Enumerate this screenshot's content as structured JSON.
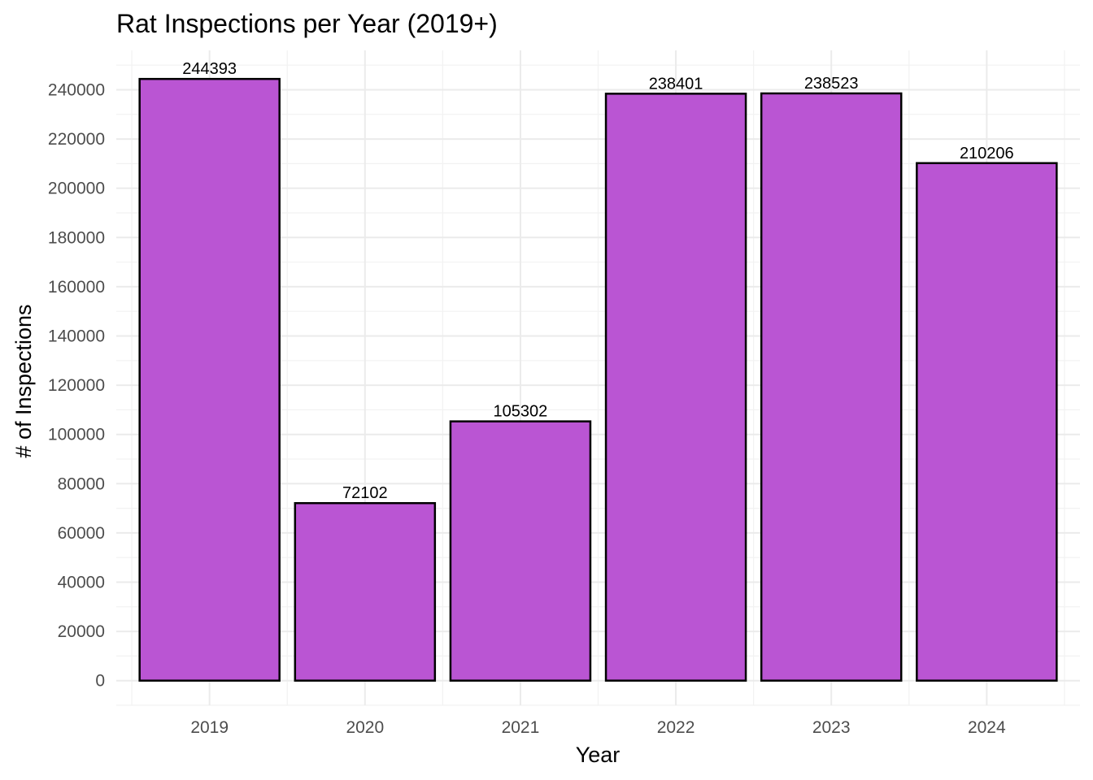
{
  "chart_data": {
    "type": "bar",
    "title": "Rat Inspections per Year (2019+)",
    "xlabel": "Year",
    "ylabel": "# of Inspections",
    "categories": [
      "2019",
      "2020",
      "2021",
      "2022",
      "2023",
      "2024"
    ],
    "values": [
      244393,
      72102,
      105302,
      238401,
      238523,
      210206
    ],
    "data_labels": [
      "244393",
      "72102",
      "105302",
      "238401",
      "238523",
      "210206"
    ],
    "yticks": [
      0,
      20000,
      40000,
      60000,
      80000,
      100000,
      120000,
      140000,
      160000,
      180000,
      200000,
      220000,
      240000
    ],
    "ytick_labels": [
      "0",
      "20000",
      "40000",
      "60000",
      "80000",
      "100000",
      "120000",
      "140000",
      "160000",
      "180000",
      "200000",
      "220000",
      "240000"
    ],
    "ylim": [
      -10000,
      256000
    ],
    "grid": true,
    "legend": "none",
    "colors": {
      "bar_fill": "#BA55D3",
      "bar_outline": "#000000",
      "grid": "#ebebeb",
      "tick_text": "#4d4d4d"
    }
  }
}
